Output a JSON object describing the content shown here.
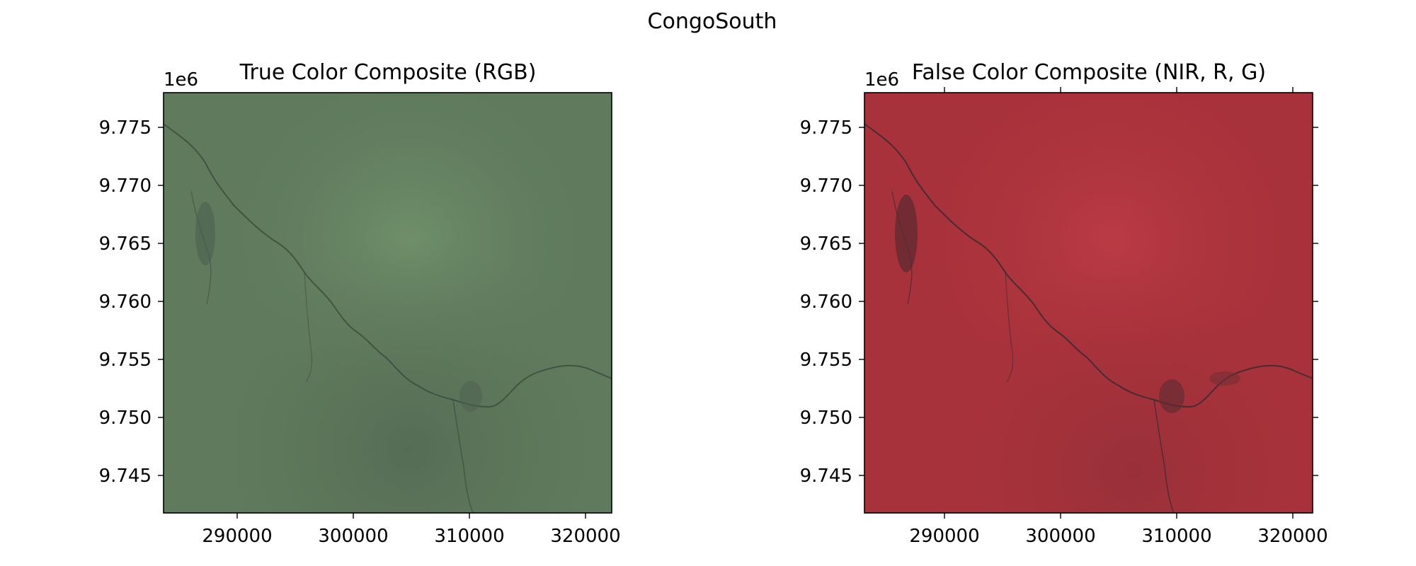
{
  "figure": {
    "suptitle": "CongoSouth"
  },
  "panels": [
    {
      "title": "True Color Composite (RGB)",
      "offset_label": "1e6",
      "x_ticks": [
        "290000",
        "300000",
        "310000",
        "320000"
      ],
      "y_ticks": [
        "9.775",
        "9.770",
        "9.765",
        "9.760",
        "9.755",
        "9.750",
        "9.745"
      ],
      "image_description_colors": {
        "base": "#5f7a5d",
        "light": "#6e8d68",
        "dark": "#4d6450",
        "river": "#3b4a3d"
      }
    },
    {
      "title": "False Color Composite (NIR, R, G)",
      "offset_label": "1e6",
      "x_ticks": [
        "290000",
        "300000",
        "310000",
        "320000"
      ],
      "y_ticks": [
        "9.775",
        "9.770",
        "9.765",
        "9.760",
        "9.755",
        "9.750",
        "9.745"
      ],
      "image_description_colors": {
        "base": "#a8323b",
        "light": "#bd3a46",
        "dark": "#8b3038",
        "river": "#3a2a2e"
      }
    }
  ]
}
